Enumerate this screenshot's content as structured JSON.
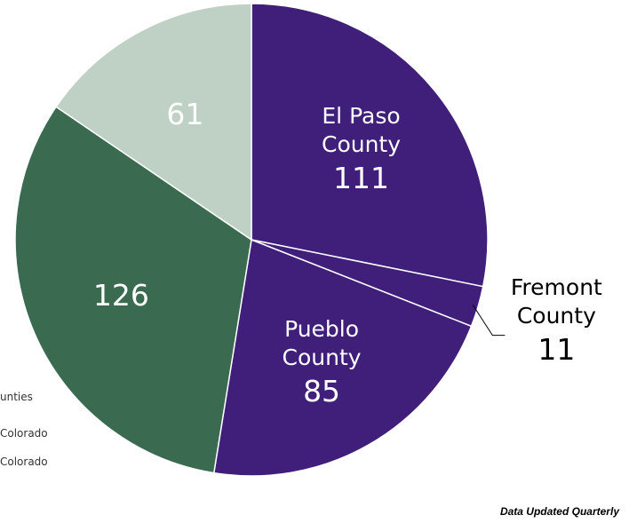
{
  "chart_data": {
    "type": "pie",
    "categories": [
      "El Paso County",
      "Fremont County",
      "Pueblo County",
      null,
      null
    ],
    "values": [
      111,
      11,
      85,
      126,
      61
    ],
    "colors": [
      "#3f1f7a",
      "#3f1f7a",
      "#3f1f7a",
      "#3a6b50",
      "#bfd1c4"
    ],
    "legend_labels": [
      "unties",
      "Colorado",
      "Colorado"
    ],
    "footnote": "Data Updated Quarterly"
  }
}
